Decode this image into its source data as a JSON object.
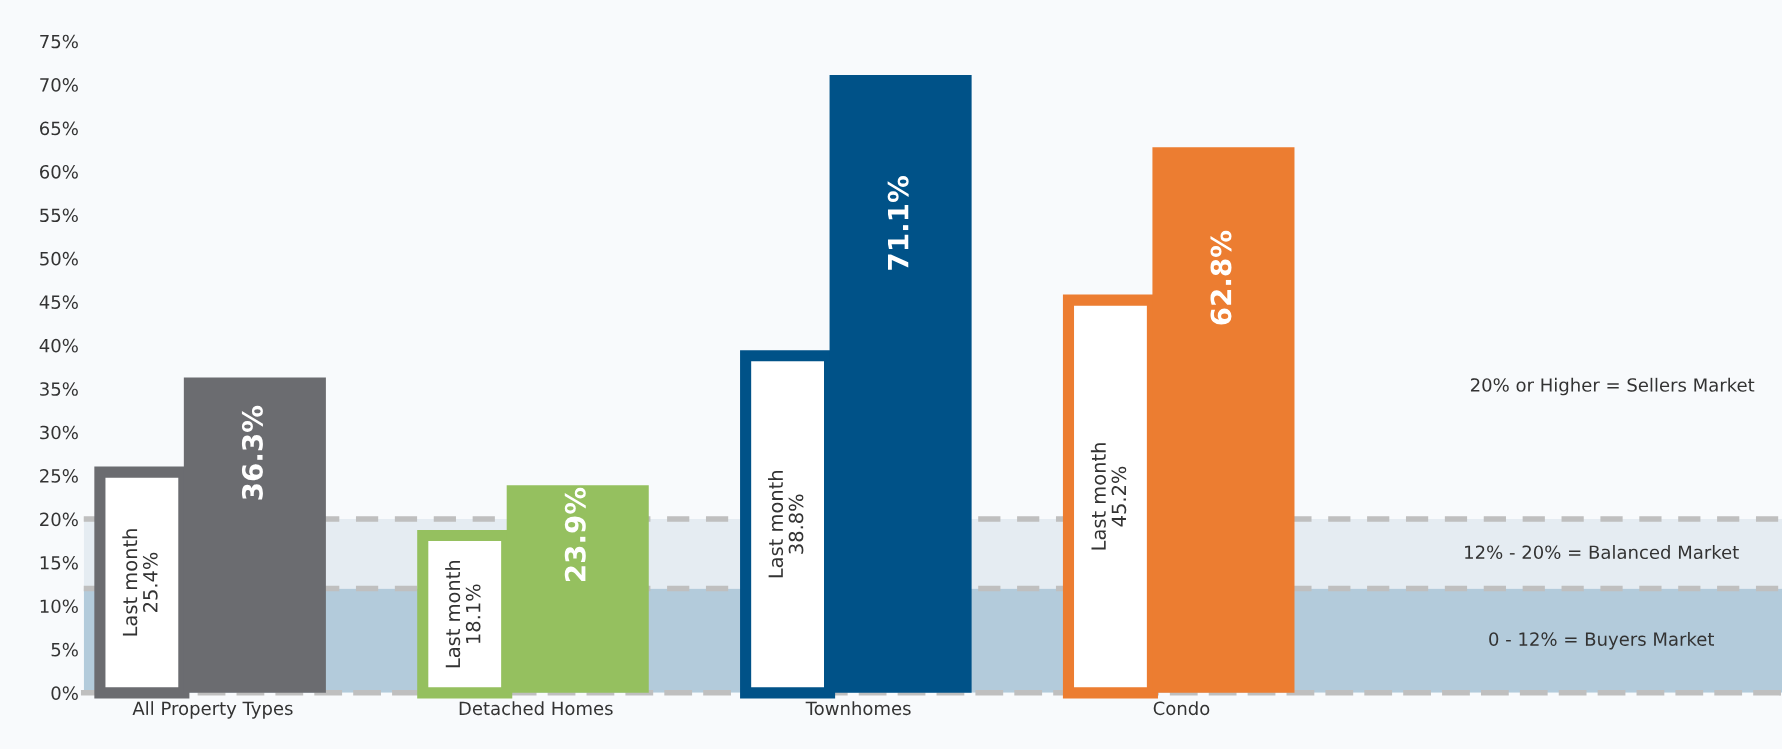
{
  "chart_data": {
    "type": "bar",
    "categories": [
      "All Property Types",
      "Detached Homes",
      "Townhomes",
      "Condo"
    ],
    "series": [
      {
        "name": "Last month",
        "colors": [
          "#6b6c70",
          "#95c05f",
          "#005288",
          "#ec7d31"
        ],
        "values": [
          25.4,
          18.1,
          38.8,
          45.2
        ],
        "value_labels": [
          "25.4%",
          "18.1%",
          "38.8%",
          "45.2%"
        ]
      },
      {
        "colors": [
          "#6b6c70",
          "#95c05f",
          "#005288",
          "#ec7d31"
        ],
        "values": [
          36.3,
          23.9,
          71.1,
          62.8
        ],
        "value_labels": [
          "36.3%",
          "23.9%",
          "71.1%",
          "62.8%"
        ]
      }
    ],
    "ylim": [
      0,
      75
    ],
    "yticks": [
      {
        "value": 0,
        "label": "0%"
      },
      {
        "value": 5,
        "label": "5%"
      },
      {
        "value": 10,
        "label": "10%"
      },
      {
        "value": 15,
        "label": "15%"
      },
      {
        "value": 20,
        "label": "20%"
      },
      {
        "value": 25,
        "label": "25%"
      },
      {
        "value": 30,
        "label": "30%"
      },
      {
        "value": 35,
        "label": "35%"
      },
      {
        "value": 40,
        "label": "40%"
      },
      {
        "value": 45,
        "label": "45%"
      },
      {
        "value": 50,
        "label": "50%"
      },
      {
        "value": 55,
        "label": "55%"
      },
      {
        "value": 60,
        "label": "60%"
      },
      {
        "value": 65,
        "label": "65%"
      },
      {
        "value": 70,
        "label": "70%"
      },
      {
        "value": 75,
        "label": "75%"
      }
    ],
    "bands": [
      {
        "axis": "y",
        "from": 0,
        "to": 12,
        "label": "0 - 12% = Buyers Market",
        "color": "#b3cbdb"
      },
      {
        "axis": "y",
        "from": 12,
        "to": 20,
        "label": "12% - 20% = Balanced Market",
        "color": "#e5ecf2"
      }
    ],
    "annotations": [
      "20% or Higher = Sellers Market"
    ],
    "ref_lines": [
      {
        "axis": "y",
        "value": 12,
        "color": "#bfbfbf",
        "line_style": "dashed"
      },
      {
        "axis": "y",
        "value": 20,
        "color": "#bfbfbf",
        "line_style": "dashed"
      }
    ],
    "grid": false,
    "legend": false
  }
}
